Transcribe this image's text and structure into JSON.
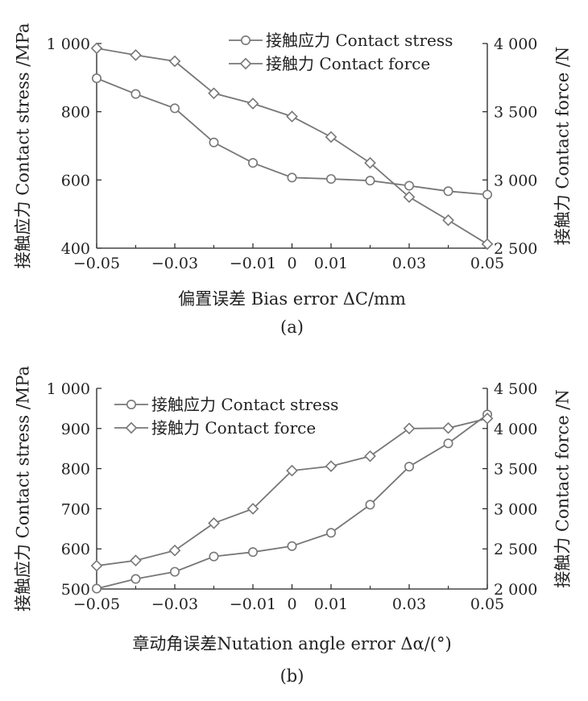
{
  "colors": {
    "axis": "#222222",
    "series_line": "#777777",
    "marker_fill": "#ffffff"
  },
  "chart_data": [
    {
      "type": "line",
      "panel_label": "(a)",
      "xlabel": "偏置误差 Bias error ΔC/mm",
      "ylabel": "接触应力 Contact stress /MPa",
      "y2label": "接触力 Contact force /N",
      "x": [
        -0.05,
        -0.04,
        -0.03,
        -0.02,
        -0.01,
        0,
        0.01,
        0.02,
        0.03,
        0.04,
        0.05
      ],
      "xticks": [
        -0.05,
        -0.03,
        -0.01,
        0,
        0.01,
        0.03,
        0.05
      ],
      "xtick_labels": [
        "−0.05",
        "−0.03",
        "−0.01",
        "0",
        "0.01",
        "0.03",
        "0.05"
      ],
      "xlim": [
        -0.05,
        0.05
      ],
      "ylim": [
        400,
        1000
      ],
      "yticks": [
        400,
        600,
        800,
        1000
      ],
      "ytick_labels": [
        "400",
        "600",
        "800",
        "1 000"
      ],
      "y2lim": [
        2500,
        4000
      ],
      "y2ticks": [
        2500,
        3000,
        3500,
        4000
      ],
      "y2tick_labels": [
        "2 500",
        "3 000",
        "3 500",
        "4 000"
      ],
      "legend_position": "top-right",
      "series": [
        {
          "name": "接触应力 Contact stress",
          "axis": "left",
          "marker": "circle",
          "values": [
            898,
            852,
            810,
            710,
            650,
            607,
            603,
            598,
            583,
            567,
            557
          ]
        },
        {
          "name": "接触力 Contact force",
          "axis": "right",
          "marker": "diamond",
          "values": [
            3965,
            3915,
            3870,
            3635,
            3560,
            3465,
            3315,
            3125,
            2875,
            2705,
            2530
          ]
        }
      ]
    },
    {
      "type": "line",
      "panel_label": "(b)",
      "xlabel": "章动角误差Nutation angle error Δα/(°)",
      "ylabel": "接触应力 Contact stress /MPa",
      "y2label": "接触力 Contact force /N",
      "x": [
        -0.05,
        -0.04,
        -0.03,
        -0.02,
        -0.01,
        0,
        0.01,
        0.02,
        0.03,
        0.04,
        0.05
      ],
      "xticks": [
        -0.05,
        -0.03,
        -0.01,
        0,
        0.01,
        0.03,
        0.05
      ],
      "xtick_labels": [
        "−0.05",
        "−0.03",
        "−0.01",
        "0",
        "0.01",
        "0.03",
        "0.05"
      ],
      "xlim": [
        -0.05,
        0.05
      ],
      "ylim": [
        500,
        1000
      ],
      "yticks": [
        500,
        600,
        700,
        800,
        900,
        1000
      ],
      "ytick_labels": [
        "500",
        "600",
        "700",
        "800",
        "900",
        "1 000"
      ],
      "y2lim": [
        2000,
        4500
      ],
      "y2ticks": [
        2000,
        2500,
        3000,
        3500,
        4000,
        4500
      ],
      "y2tick_labels": [
        "2 000",
        "2 500",
        "3 000",
        "3 500",
        "4 000",
        "4 500"
      ],
      "legend_position": "top-left",
      "series": [
        {
          "name": "接触应力 Contact stress",
          "axis": "left",
          "marker": "circle",
          "values": [
            501,
            525,
            543,
            581,
            592,
            607,
            640,
            710,
            805,
            863,
            935
          ]
        },
        {
          "name": "接触力 Contact force",
          "axis": "right",
          "marker": "diamond",
          "values": [
            2290,
            2355,
            2480,
            2820,
            3000,
            3475,
            3530,
            3655,
            4000,
            4005,
            4125
          ]
        }
      ]
    }
  ]
}
